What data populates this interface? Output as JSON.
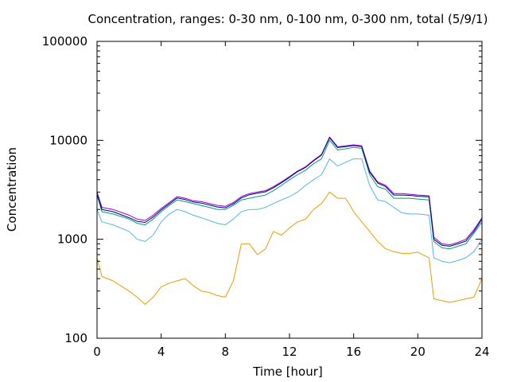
{
  "chart_data": {
    "type": "line",
    "title": "Concentration, ranges: 0-30 nm, 0-100 nm, 0-300 nm, total (5/9/1)",
    "xlabel": "Time [hour]",
    "ylabel": "Concentration",
    "xlim": [
      0,
      24
    ],
    "ylim": [
      100,
      100000
    ],
    "yscale": "log",
    "xticks": [
      0,
      4,
      8,
      12,
      16,
      20,
      24
    ],
    "yticks": [
      100,
      1000,
      10000,
      100000
    ],
    "xtick_labels": [
      "0",
      "4",
      "8",
      "12",
      "16",
      "20",
      "24"
    ],
    "ytick_labels": [
      "100",
      "1000",
      "10000",
      "100000"
    ],
    "grid": false,
    "legend": false,
    "colors": [
      "#e69f00",
      "#56b4e9",
      "#009e73",
      "#9400d3",
      "#000080"
    ],
    "x": [
      0,
      0.3,
      1,
      2,
      2.5,
      3,
      3.5,
      4,
      4.5,
      5,
      5.5,
      6,
      6.5,
      7,
      7.5,
      8,
      8.5,
      9,
      9.5,
      10,
      10.5,
      11,
      11.5,
      12,
      12.5,
      13,
      13.5,
      14,
      14.5,
      15,
      15.5,
      16,
      16.5,
      17,
      17.5,
      18,
      18.5,
      19,
      19.5,
      20,
      20.7,
      21,
      21.5,
      22,
      22.5,
      23,
      23.5,
      24
    ],
    "series": [
      {
        "values": [
          650,
          420,
          380,
          300,
          260,
          220,
          260,
          330,
          360,
          380,
          400,
          340,
          300,
          290,
          270,
          260,
          380,
          900,
          900,
          700,
          800,
          1200,
          1100,
          1300,
          1500,
          1600,
          2000,
          2300,
          3000,
          2600,
          2600,
          1900,
          1500,
          1200,
          950,
          800,
          750,
          720,
          720,
          740,
          650,
          250,
          240,
          230,
          240,
          250,
          260,
          400
        ]
      },
      {
        "values": [
          2000,
          1500,
          1400,
          1200,
          1000,
          950,
          1100,
          1500,
          1800,
          2000,
          1900,
          1750,
          1650,
          1550,
          1450,
          1400,
          1600,
          1900,
          2000,
          2000,
          2100,
          2300,
          2500,
          2700,
          3000,
          3500,
          4000,
          4500,
          6500,
          5500,
          6000,
          6500,
          6500,
          3500,
          2500,
          2400,
          2100,
          1850,
          1800,
          1800,
          1750,
          650,
          600,
          580,
          610,
          650,
          750,
          1000
        ]
      },
      {
        "values": [
          2800,
          1900,
          1800,
          1600,
          1450,
          1400,
          1600,
          1900,
          2200,
          2500,
          2400,
          2300,
          2200,
          2100,
          2000,
          2000,
          2200,
          2500,
          2600,
          2700,
          2800,
          3100,
          3500,
          4000,
          4500,
          5000,
          5800,
          6500,
          10000,
          8000,
          8200,
          8500,
          8300,
          4500,
          3400,
          3200,
          2600,
          2600,
          2600,
          2550,
          2500,
          950,
          820,
          800,
          850,
          900,
          1150,
          1500
        ]
      },
      {
        "values": [
          3000,
          2100,
          2000,
          1750,
          1600,
          1550,
          1750,
          2050,
          2350,
          2700,
          2600,
          2450,
          2400,
          2300,
          2200,
          2150,
          2350,
          2700,
          2900,
          3000,
          3100,
          3400,
          3800,
          4300,
          4900,
          5400,
          6300,
          7200,
          10800,
          8600,
          8800,
          9000,
          8800,
          4900,
          3800,
          3500,
          2900,
          2900,
          2850,
          2800,
          2750,
          1050,
          900,
          880,
          930,
          1000,
          1250,
          1650
        ]
      },
      {
        "values": [
          2900,
          2000,
          1900,
          1650,
          1520,
          1480,
          1680,
          1980,
          2280,
          2620,
          2520,
          2380,
          2320,
          2220,
          2120,
          2080,
          2280,
          2620,
          2820,
          2920,
          3020,
          3320,
          3720,
          4220,
          4820,
          5320,
          6200,
          7100,
          10600,
          8450,
          8650,
          8850,
          8650,
          4750,
          3700,
          3400,
          2800,
          2800,
          2780,
          2720,
          2680,
          1000,
          870,
          850,
          900,
          960,
          1200,
          1600
        ]
      }
    ]
  }
}
